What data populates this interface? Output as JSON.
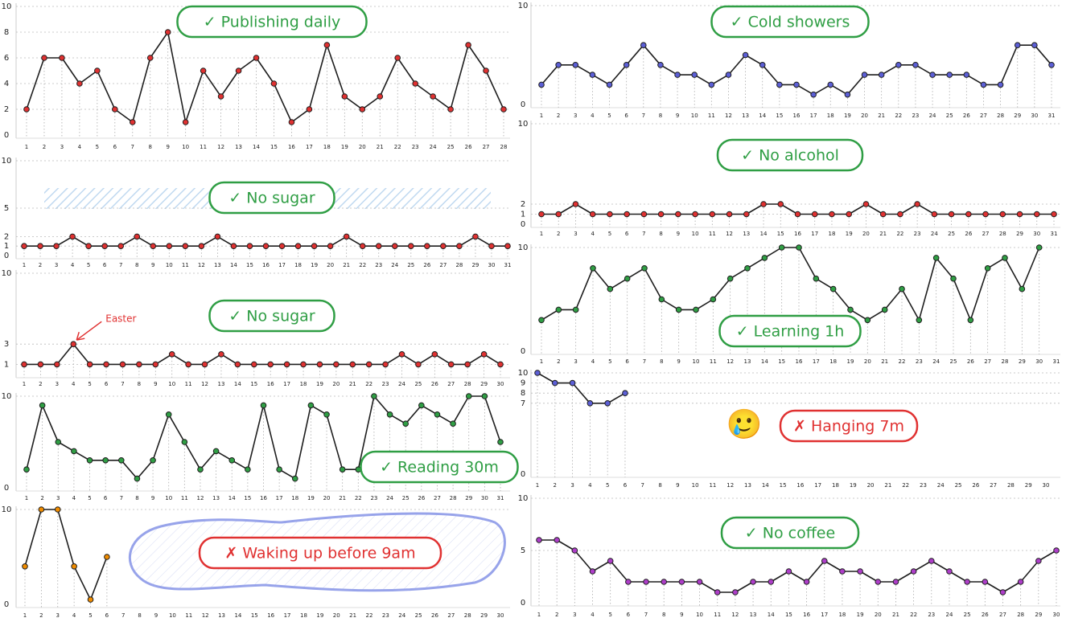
{
  "chart_data": [
    {
      "type": "line",
      "title": "✓ Publishing daily",
      "title_color": "#2f9e44",
      "color": "#e03131",
      "categories": [
        1,
        2,
        3,
        4,
        5,
        6,
        7,
        8,
        9,
        10,
        11,
        12,
        13,
        14,
        15,
        16,
        17,
        18,
        19,
        20,
        21,
        22,
        23,
        24,
        25,
        26,
        27,
        28
      ],
      "values": [
        2,
        6,
        6,
        4,
        5,
        2,
        1,
        6,
        8,
        1,
        5,
        3,
        5,
        6,
        4,
        1,
        2,
        7,
        3,
        2,
        3,
        6,
        4,
        3,
        2,
        7,
        5,
        2
      ],
      "ylim": [
        0,
        10
      ],
      "yticks": [
        0,
        2,
        4,
        6,
        8,
        10
      ],
      "grid": true
    },
    {
      "type": "line",
      "title": "✓ No sugar",
      "title_color": "#2f9e44",
      "color": "#e03131",
      "categories": [
        1,
        2,
        3,
        4,
        5,
        6,
        7,
        8,
        9,
        10,
        11,
        12,
        13,
        14,
        15,
        16,
        17,
        18,
        19,
        20,
        21,
        22,
        23,
        24,
        25,
        26,
        27,
        28,
        29,
        30,
        31
      ],
      "values": [
        1,
        1,
        1,
        2,
        1,
        1,
        1,
        2,
        1,
        1,
        1,
        1,
        2,
        1,
        1,
        1,
        1,
        1,
        1,
        1,
        2,
        1,
        1,
        1,
        1,
        1,
        1,
        1,
        2,
        1,
        1
      ],
      "ylim": [
        0,
        10
      ],
      "yticks": [
        0,
        1,
        2,
        5,
        10
      ],
      "grid": true
    },
    {
      "type": "line",
      "title": "✓ No sugar",
      "title_color": "#2f9e44",
      "color": "#e03131",
      "categories": [
        1,
        2,
        3,
        4,
        5,
        6,
        7,
        8,
        9,
        10,
        11,
        12,
        13,
        14,
        15,
        16,
        17,
        18,
        19,
        20,
        21,
        22,
        23,
        24,
        25,
        26,
        27,
        28,
        29,
        30
      ],
      "values": [
        1,
        1,
        1,
        3,
        1,
        1,
        1,
        1,
        1,
        2,
        1,
        1,
        2,
        1,
        1,
        1,
        1,
        1,
        1,
        1,
        1,
        1,
        1,
        2,
        1,
        2,
        1,
        1,
        2,
        1
      ],
      "ylim": [
        0,
        10
      ],
      "yticks": [
        1,
        3,
        10
      ],
      "grid": true,
      "annotation": "Easter"
    },
    {
      "type": "line",
      "title": "✓ Reading 30m",
      "title_color": "#2f9e44",
      "color": "#2f9e44",
      "categories": [
        1,
        2,
        3,
        4,
        5,
        6,
        7,
        8,
        9,
        10,
        11,
        12,
        13,
        14,
        15,
        16,
        17,
        18,
        19,
        20,
        21,
        22,
        23,
        24,
        25,
        26,
        27,
        28,
        29,
        30,
        31
      ],
      "values": [
        2,
        9,
        5,
        4,
        3,
        3,
        3,
        1,
        3,
        8,
        5,
        2,
        4,
        3,
        2,
        9,
        2,
        1,
        9,
        8,
        2,
        2,
        10,
        8,
        7,
        9,
        8,
        7,
        10,
        10,
        5
      ],
      "ylim": [
        0,
        10
      ],
      "yticks": [
        0,
        10
      ],
      "grid": true
    },
    {
      "type": "line",
      "title": "✗ Waking up before 9am",
      "title_color": "#e03131",
      "color": "#f08c00",
      "categories": [
        1,
        2,
        3,
        4,
        5,
        6,
        7,
        8,
        9,
        10,
        11,
        12,
        13,
        14,
        15,
        16,
        17,
        18,
        19,
        20,
        21,
        22,
        23,
        24,
        25,
        26,
        27,
        28,
        29,
        30
      ],
      "values": [
        4,
        10,
        10,
        4,
        0.5,
        5,
        null,
        null,
        null,
        null,
        null,
        null,
        null,
        null,
        null,
        null,
        null,
        null,
        null,
        null,
        null,
        null,
        null,
        null,
        null,
        null,
        null,
        null,
        null,
        null
      ],
      "ylim": [
        0,
        10
      ],
      "yticks": [
        0,
        10
      ],
      "grid": true
    },
    {
      "type": "line",
      "title": "✓ Cold showers",
      "title_color": "#2f9e44",
      "color": "#5c5fd6",
      "categories": [
        1,
        2,
        3,
        4,
        5,
        6,
        7,
        8,
        9,
        10,
        11,
        12,
        13,
        14,
        15,
        16,
        17,
        18,
        19,
        20,
        21,
        22,
        23,
        24,
        25,
        26,
        27,
        28,
        29,
        30,
        31
      ],
      "values": [
        2,
        4,
        4,
        3,
        2,
        4,
        6,
        4,
        3,
        3,
        2,
        3,
        5,
        4,
        2,
        2,
        1,
        2,
        1,
        3,
        3,
        4,
        4,
        3,
        3,
        3,
        2,
        2,
        6,
        6,
        4
      ],
      "ylim": [
        0,
        10
      ],
      "yticks": [
        0,
        10
      ],
      "grid": true
    },
    {
      "type": "line",
      "title": "✓ No alcohol",
      "title_color": "#2f9e44",
      "color": "#e03131",
      "categories": [
        1,
        2,
        3,
        4,
        5,
        6,
        7,
        8,
        9,
        10,
        11,
        12,
        13,
        14,
        15,
        16,
        17,
        18,
        19,
        20,
        21,
        22,
        23,
        24,
        25,
        26,
        27,
        28,
        29,
        30,
        31
      ],
      "values": [
        1,
        1,
        2,
        1,
        1,
        1,
        1,
        1,
        1,
        1,
        1,
        1,
        1,
        2,
        2,
        1,
        1,
        1,
        1,
        2,
        1,
        1,
        2,
        1,
        1,
        1,
        1,
        1,
        1,
        1,
        1
      ],
      "ylim": [
        0,
        10
      ],
      "yticks": [
        0,
        1,
        2,
        10
      ],
      "grid": true
    },
    {
      "type": "line",
      "title": "✓ Learning 1h",
      "title_color": "#2f9e44",
      "color": "#2f9e44",
      "categories": [
        1,
        2,
        3,
        4,
        5,
        6,
        7,
        8,
        9,
        10,
        11,
        12,
        13,
        14,
        15,
        16,
        17,
        18,
        19,
        20,
        21,
        22,
        23,
        24,
        25,
        26,
        27,
        28,
        29,
        30,
        31
      ],
      "values": [
        3,
        4,
        4,
        8,
        6,
        7,
        8,
        5,
        4,
        4,
        5,
        7,
        8,
        9,
        10,
        10,
        7,
        6,
        4,
        3,
        4,
        6,
        3,
        9,
        7,
        3,
        8,
        9,
        6,
        10,
        null
      ],
      "ylim": [
        0,
        10
      ],
      "yticks": [
        0,
        10
      ],
      "grid": true
    },
    {
      "type": "line",
      "title": "✗ Hanging 7m",
      "title_color": "#e03131",
      "color": "#5c5fd6",
      "emoji": "🥲",
      "categories": [
        1,
        2,
        3,
        4,
        5,
        6,
        7,
        8,
        9,
        10,
        11,
        12,
        13,
        14,
        15,
        16,
        17,
        18,
        19,
        20,
        21,
        22,
        23,
        24,
        25,
        26,
        27,
        28,
        29,
        30
      ],
      "values": [
        10,
        9,
        9,
        7,
        7,
        8,
        null,
        null,
        null,
        null,
        null,
        null,
        null,
        null,
        null,
        null,
        null,
        null,
        null,
        null,
        null,
        null,
        null,
        null,
        null,
        null,
        null,
        null,
        null,
        null
      ],
      "ylim": [
        0,
        10
      ],
      "yticks": [
        0,
        7,
        8,
        9,
        10
      ],
      "grid": true
    },
    {
      "type": "line",
      "title": "✓ No coffee",
      "title_color": "#2f9e44",
      "color": "#ae3ec9",
      "categories": [
        1,
        2,
        3,
        4,
        5,
        6,
        7,
        8,
        9,
        10,
        11,
        12,
        13,
        14,
        15,
        16,
        17,
        18,
        19,
        20,
        21,
        22,
        23,
        24,
        25,
        26,
        27,
        28,
        29,
        30
      ],
      "values": [
        6,
        6,
        5,
        3,
        4,
        2,
        2,
        2,
        2,
        2,
        1,
        1,
        2,
        2,
        3,
        2,
        4,
        3,
        3,
        2,
        2,
        3,
        4,
        3,
        2,
        2,
        1,
        2,
        4,
        5
      ],
      "ylim": [
        0,
        10
      ],
      "yticks": [
        0,
        5,
        10
      ],
      "grid": true
    }
  ]
}
